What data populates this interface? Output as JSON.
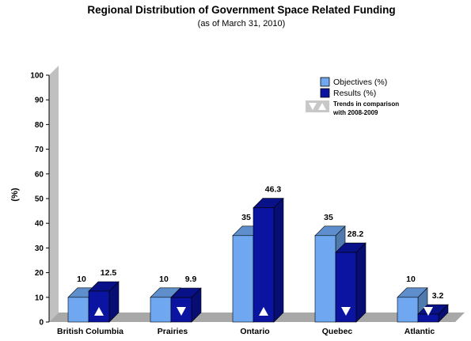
{
  "chart_data": {
    "type": "bar",
    "title": "Regional Distribution of Government Space Related Funding",
    "subtitle": "(as of March 31, 2010)",
    "ylabel": "(%)",
    "ylim": [
      0,
      100
    ],
    "yticks": [
      "0",
      "10",
      "20",
      "30",
      "40",
      "50",
      "60",
      "70",
      "80",
      "90",
      "100"
    ],
    "categories": [
      "British Columbia",
      "Prairies",
      "Ontario",
      "Quebec",
      "Atlantic"
    ],
    "series": [
      {
        "name": "Objectives (%)",
        "values": [
          10,
          10,
          35,
          35,
          10
        ],
        "labels": [
          "10",
          "10",
          "35",
          "35",
          "10"
        ],
        "color": "#6fa8f0"
      },
      {
        "name": "Results (%)",
        "values": [
          12.5,
          9.9,
          46.3,
          28.2,
          3.2
        ],
        "labels": [
          "12.5",
          "9.9",
          "46.3",
          "28.2",
          "3.2"
        ],
        "color": "#0a14a0"
      }
    ],
    "trends": [
      "up",
      "down",
      "up",
      "down",
      "down"
    ],
    "legend": {
      "placement": "top-right",
      "trend_label_line1": "Trends in comparison",
      "trend_label_line2": "with 2008-2009"
    },
    "grid": false
  }
}
